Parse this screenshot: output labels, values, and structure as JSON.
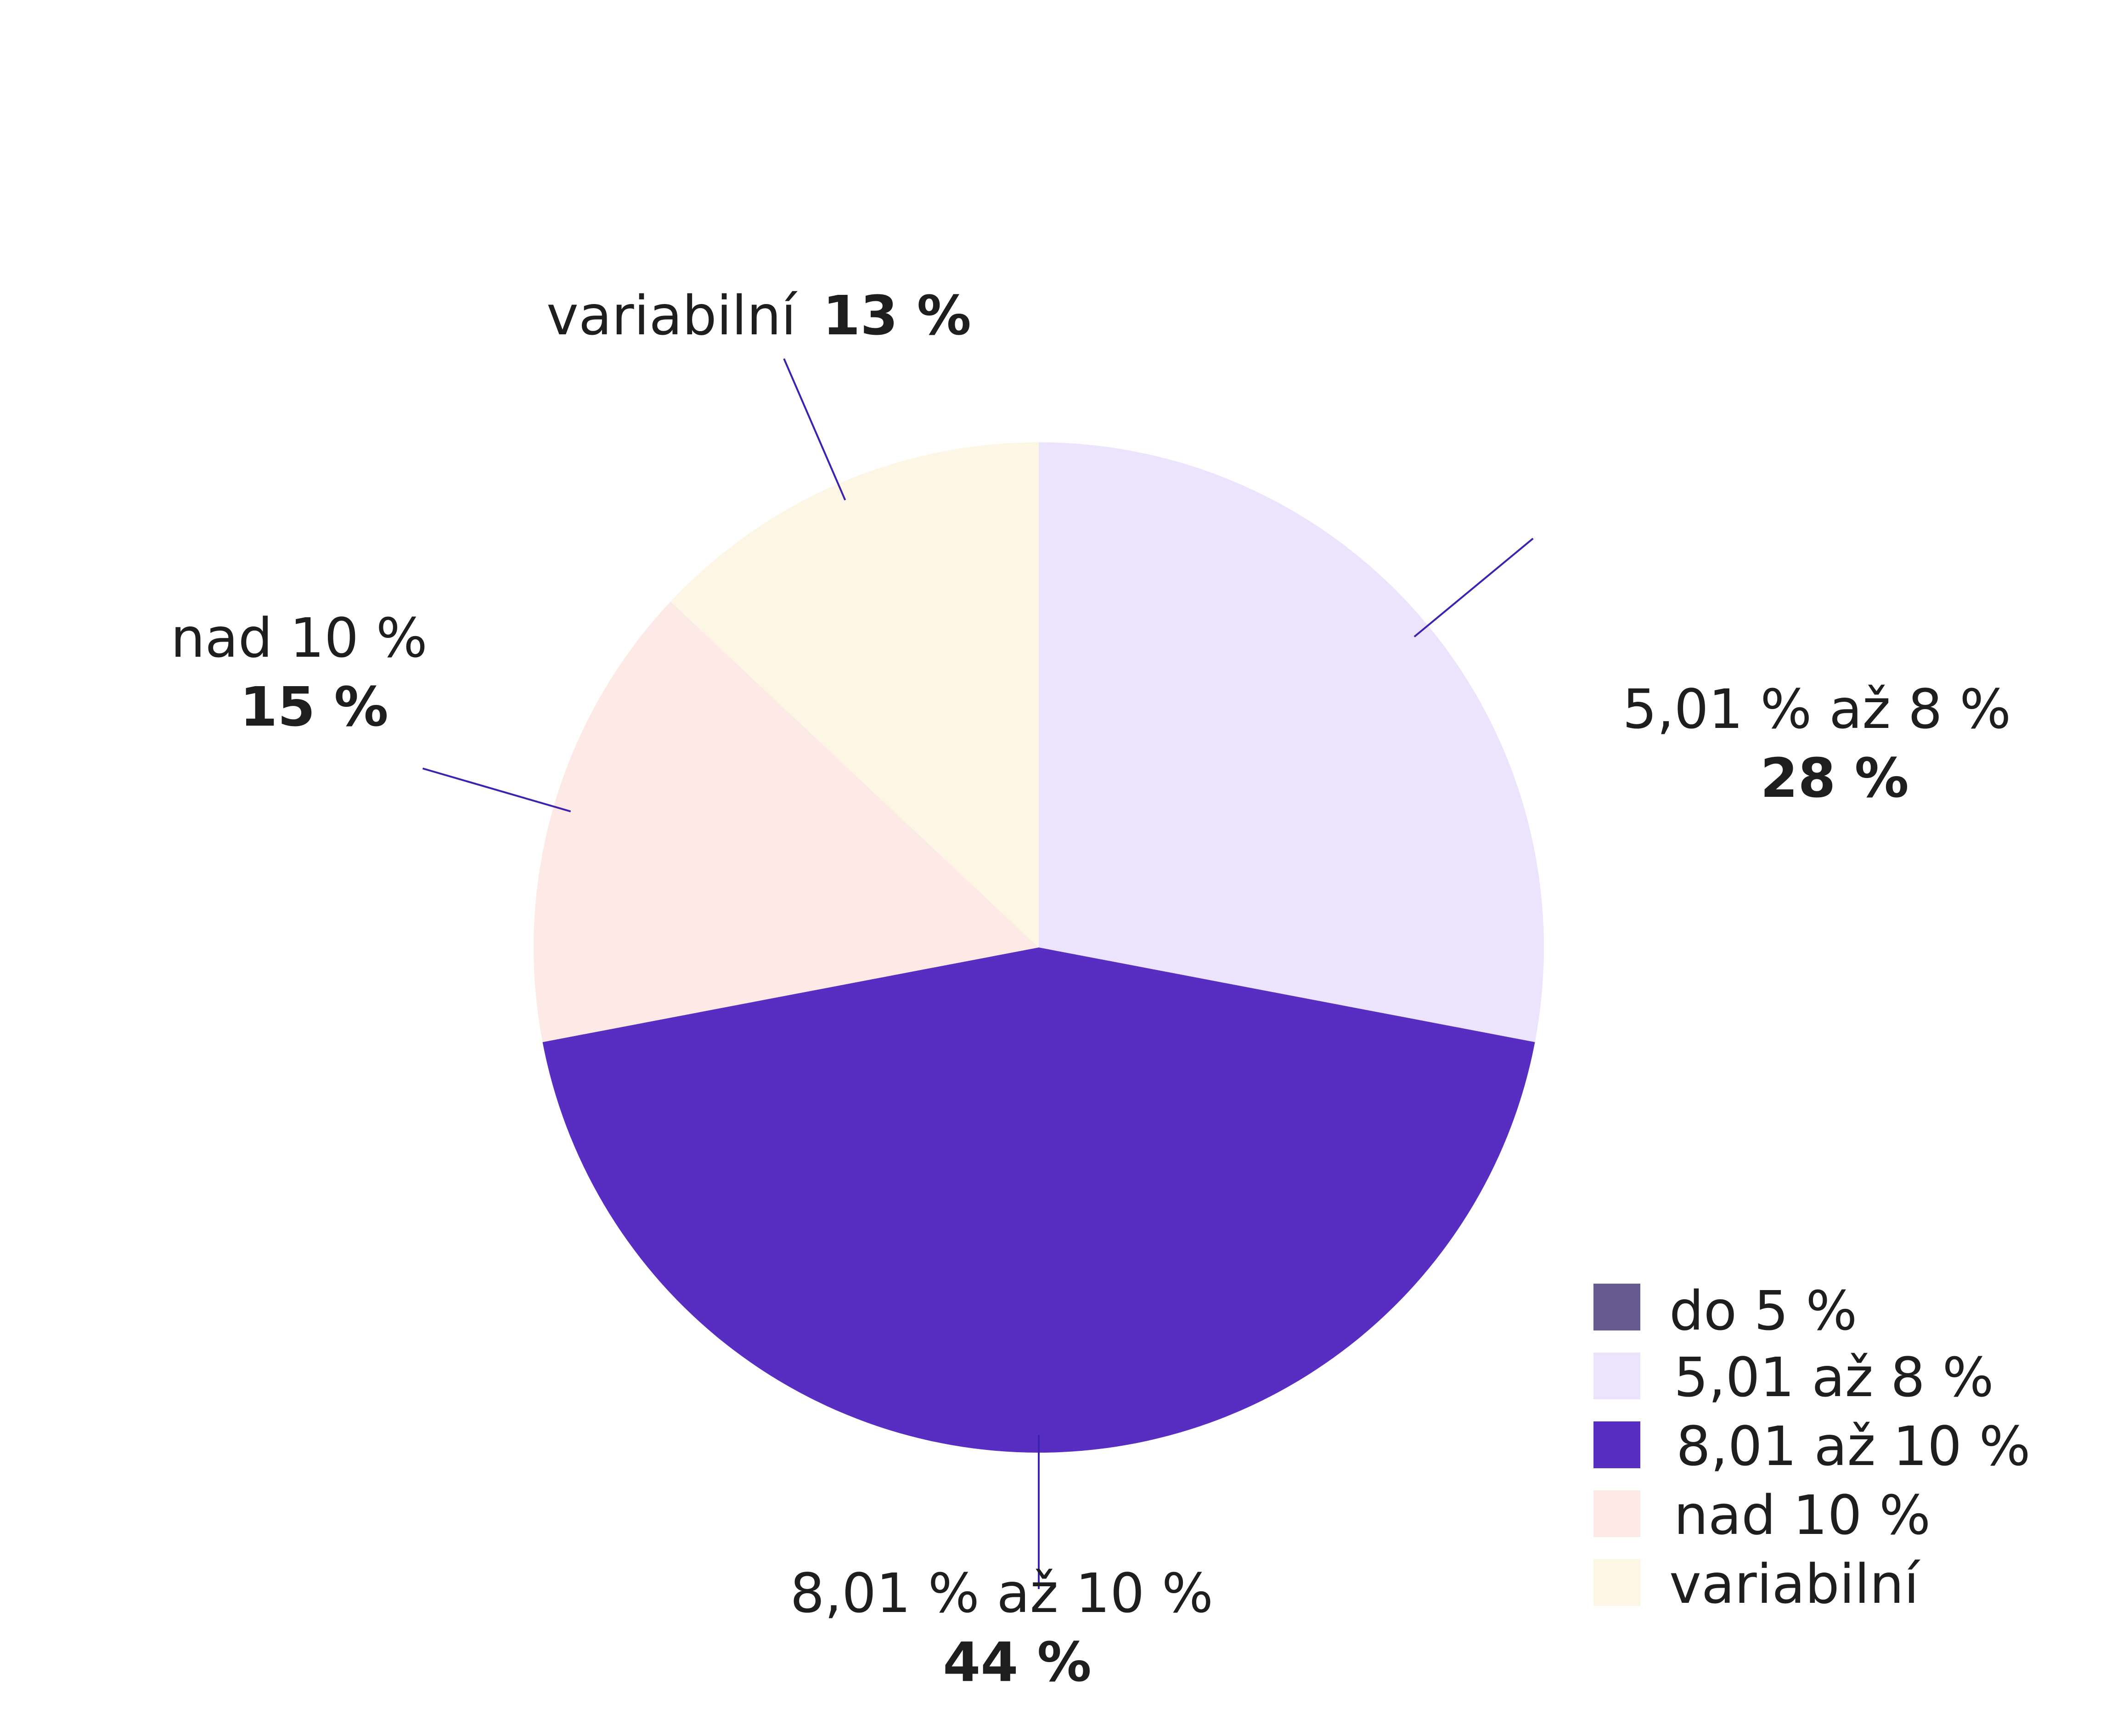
{
  "chart_data": {
    "type": "pie",
    "categories": [
      "do 5 %",
      "5,01 až 8 %",
      "8,01 až 10 %",
      "nad 10 %",
      "variabilní"
    ],
    "values": [
      0,
      28,
      44,
      15,
      13
    ],
    "colors": [
      "#655b91",
      "#ece4fd",
      "#582dc2",
      "#fde9e6",
      "#fef6e5"
    ],
    "slice_labels": [
      {
        "name": "",
        "value": ""
      },
      {
        "name": "5,01 % až 8 %",
        "value": "28 %"
      },
      {
        "name": "8,01 % až 10 %",
        "value": "44 %"
      },
      {
        "name": "nad 10 %",
        "value": "15 %"
      },
      {
        "name": "variabilní",
        "value": "13 %"
      }
    ],
    "legend_placement": "bottom-right",
    "leader_line_color": "#3d22b0"
  }
}
